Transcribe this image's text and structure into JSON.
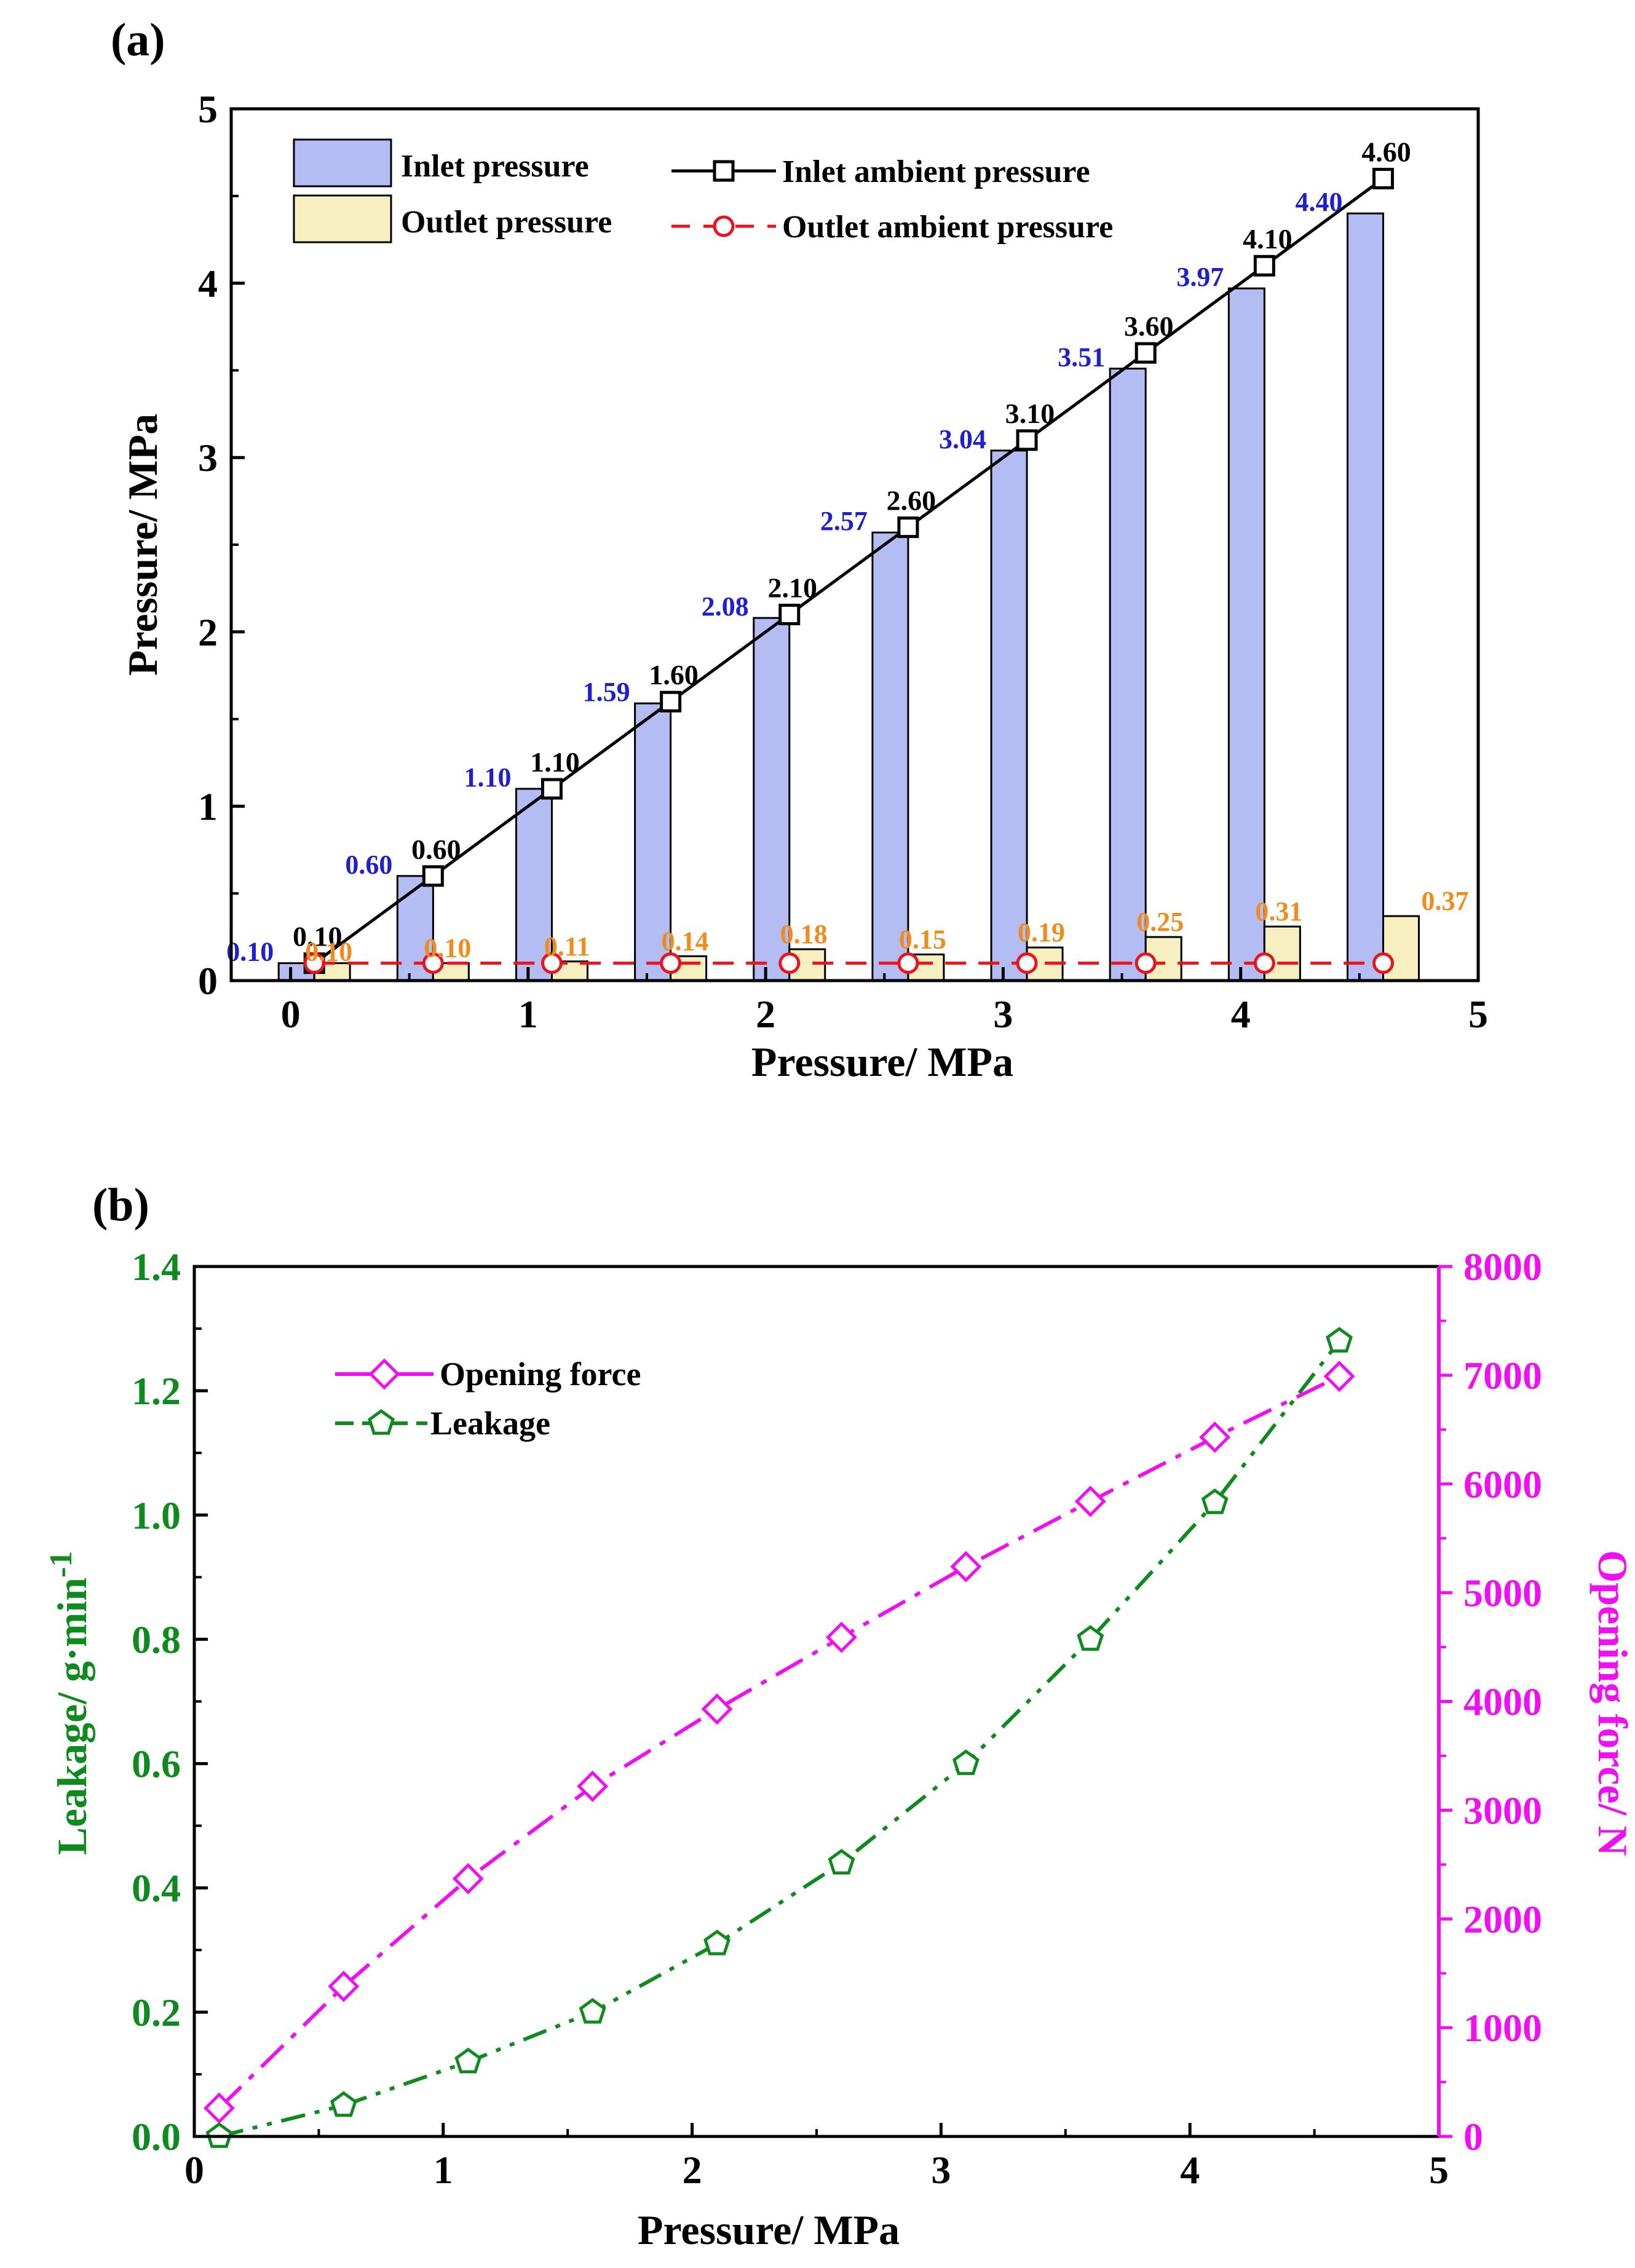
{
  "chart_data": [
    {
      "type": "bar",
      "panel_label": "(a)",
      "xlabel": "Pressure/ MPa",
      "ylabel": "Pressure/ MPa",
      "xlim": [
        -0.25,
        5
      ],
      "ylim": [
        0,
        5
      ],
      "xticks": [
        "0",
        "1",
        "2",
        "3",
        "4",
        "5"
      ],
      "yticks": [
        "0",
        "1",
        "2",
        "3",
        "4",
        "5"
      ],
      "x": [
        0.1,
        0.6,
        1.1,
        1.6,
        2.1,
        2.6,
        3.1,
        3.6,
        4.1,
        4.6
      ],
      "legend_position": "top-left",
      "series": [
        {
          "name": "Inlet pressure",
          "kind": "bar",
          "color": "#b4bcf4",
          "values": [
            0.1,
            0.6,
            1.1,
            1.59,
            2.08,
            2.57,
            3.04,
            3.51,
            3.97,
            4.4
          ],
          "labels": [
            "0.10",
            "0.60",
            "1.10",
            "1.59",
            "2.08",
            "2.57",
            "3.04",
            "3.51",
            "3.97",
            "4.40"
          ],
          "label_color": "#1f1fcc"
        },
        {
          "name": "Outlet pressure",
          "kind": "bar",
          "color": "#f6f0c0",
          "values": [
            0.1,
            0.1,
            0.11,
            0.14,
            0.18,
            0.15,
            0.19,
            0.25,
            0.31,
            0.37
          ],
          "labels": [
            "0.10",
            "0.10",
            "0.11",
            "0.14",
            "0.18",
            "0.15",
            "0.19",
            "0.25",
            "0.31",
            "0.37"
          ],
          "label_color": "#f08c1e"
        },
        {
          "name": "Inlet ambient pressure",
          "kind": "line",
          "color": "#000000",
          "marker": "square",
          "values": [
            0.1,
            0.6,
            1.1,
            1.6,
            2.1,
            2.6,
            3.1,
            3.6,
            4.1,
            4.6
          ],
          "labels": [
            "0.10",
            "0.60",
            "1.10",
            "1.60",
            "2.10",
            "2.60",
            "3.10",
            "3.60",
            "4.10",
            "4.60"
          ],
          "label_color": "#000000"
        },
        {
          "name": "Outlet ambient pressure",
          "kind": "line",
          "color": "#e8141e",
          "marker": "circle",
          "dash": true,
          "values": [
            0.1,
            0.1,
            0.1,
            0.1,
            0.1,
            0.1,
            0.1,
            0.1,
            0.1,
            0.1
          ]
        }
      ]
    },
    {
      "type": "line",
      "panel_label": "(b)",
      "xlabel": "Pressure/ MPa",
      "ylabel": "Leakage/ g·min",
      "ylabel_sup": "-1",
      "y2label": "Opening force/ N",
      "xlim": [
        0,
        5
      ],
      "ylim": [
        0,
        1.4
      ],
      "y2lim": [
        0,
        8000
      ],
      "xticks": [
        "0",
        "1",
        "2",
        "3",
        "4",
        "5"
      ],
      "yticks": [
        "0.0",
        "0.2",
        "0.4",
        "0.6",
        "0.8",
        "1.0",
        "1.2",
        "1.4"
      ],
      "y2ticks": [
        "0",
        "1000",
        "2000",
        "3000",
        "4000",
        "5000",
        "6000",
        "7000",
        "8000"
      ],
      "left_axis_color": "#0f8a1e",
      "right_axis_color": "#f00ff0",
      "legend_position": "top-left",
      "x": [
        0.1,
        0.6,
        1.1,
        1.6,
        2.1,
        2.6,
        3.1,
        3.6,
        4.1,
        4.6
      ],
      "series": [
        {
          "name": "Opening force",
          "axis": "right",
          "color": "#f00ff0",
          "marker": "diamond",
          "values": [
            260,
            1380,
            2370,
            3220,
            3930,
            4590,
            5240,
            5840,
            6430,
            6990
          ]
        },
        {
          "name": "Leakage",
          "axis": "left",
          "color": "#0f8a1e",
          "marker": "pentagon",
          "values": [
            0.0,
            0.05,
            0.12,
            0.2,
            0.31,
            0.44,
            0.6,
            0.8,
            1.02,
            1.28
          ]
        }
      ]
    }
  ]
}
